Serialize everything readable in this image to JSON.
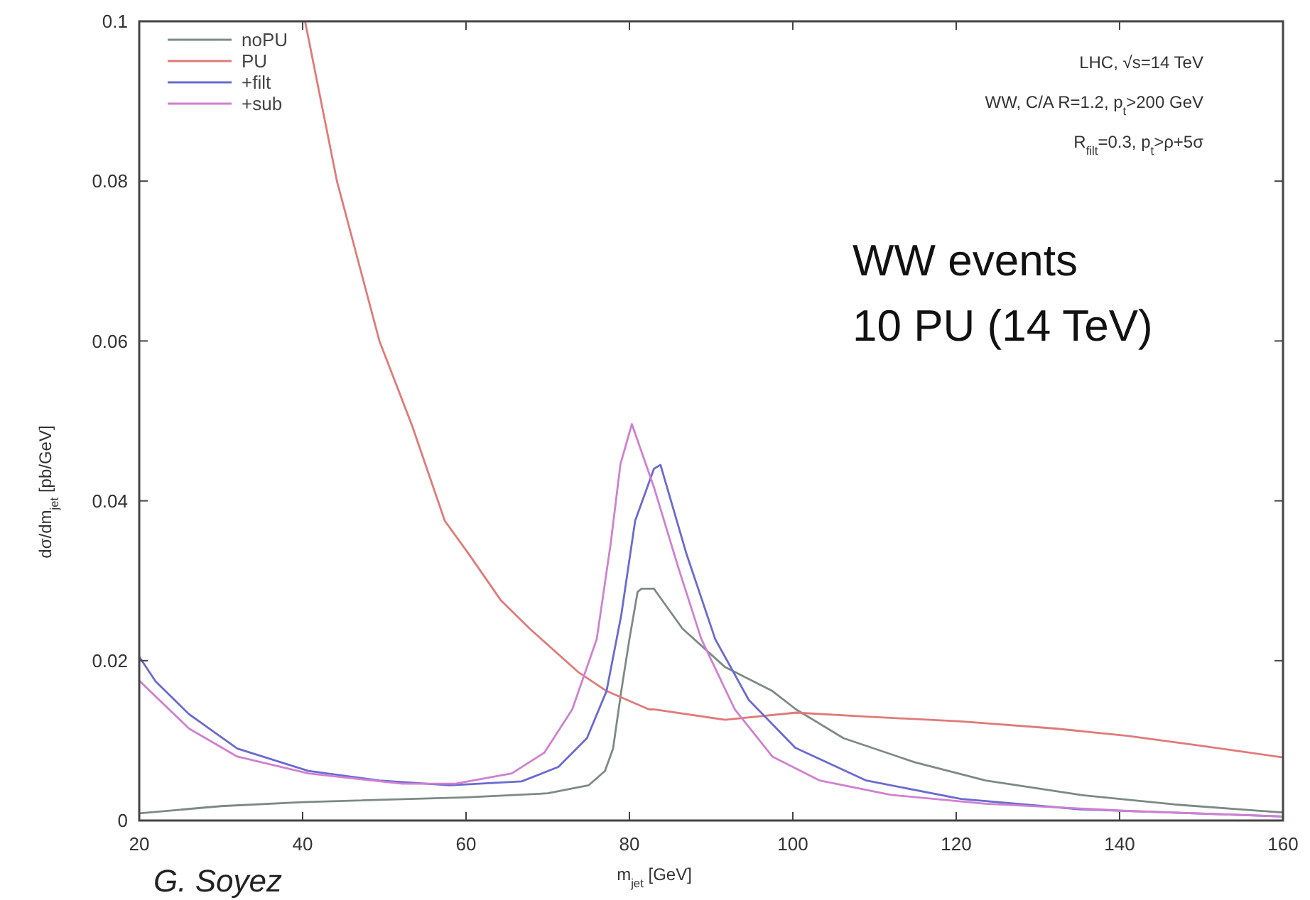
{
  "chart_data": {
    "type": "line",
    "xlabel": "m$_{jet}$ [GeV]",
    "ylabel": "dσ/dm$_{jet}$ [pb/GeV]",
    "xlim": [
      20,
      160
    ],
    "xticks": [
      20,
      40,
      60,
      80,
      100,
      120,
      140,
      160
    ],
    "ylim": [
      0,
      0.1
    ],
    "yticks": [
      0,
      0.02,
      0.04,
      0.06,
      0.08,
      0.1
    ],
    "grid": false,
    "legend": "top left",
    "marker": "none",
    "line_style": "solid",
    "annotations": [
      "LHC, √s=14 TeV",
      "WW, C/A R=1.2, p$_{t}$>200 GeV",
      "R$_{filt}$=0.3, p$_{t}$>ρ+5σ",
      "WW events",
      "10 PU (14 TeV)",
      "G. Soyez"
    ],
    "series": [
      {
        "name": "noPU",
        "color": "#7d8a84",
        "x": [
          20,
          30,
          40,
          60,
          70,
          75,
          77,
          78,
          79,
          80,
          81,
          81.5,
          83,
          86.5,
          91.7,
          97.5,
          100.4,
          106.2,
          114.9,
          123.6,
          135.2,
          146.8,
          160
        ],
        "values": [
          0.0009,
          0.0018,
          0.0023,
          0.0029,
          0.0034,
          0.0044,
          0.0062,
          0.009,
          0.0162,
          0.0227,
          0.0286,
          0.029,
          0.029,
          0.024,
          0.0192,
          0.0162,
          0.0139,
          0.0103,
          0.0073,
          0.005,
          0.0032,
          0.002,
          0.001
        ]
      },
      {
        "name": "PU",
        "color": "#e07a7a",
        "x": [
          40.3,
          44.2,
          49.4,
          53.4,
          57.4,
          60.3,
          64.3,
          67.8,
          73.7,
          77.2,
          82.4,
          83,
          91.7,
          100.4,
          109,
          120.6,
          132.2,
          140.9,
          149.6,
          160
        ],
        "values": [
          0.1,
          0.08,
          0.06,
          0.0494,
          0.0375,
          0.0334,
          0.0275,
          0.024,
          0.0186,
          0.0162,
          0.0139,
          0.0139,
          0.0126,
          0.0135,
          0.013,
          0.0124,
          0.0115,
          0.0106,
          0.0094,
          0.0079
        ]
      },
      {
        "name": "+filt",
        "color": "#6a6ad0",
        "x": [
          20,
          22,
          26.1,
          32,
          40.7,
          49.4,
          58,
          66.8,
          71.3,
          74.8,
          77.2,
          79,
          80.7,
          83,
          83.8,
          87,
          90.5,
          94.6,
          100.3,
          109,
          120.6,
          135.2,
          160
        ],
        "values": [
          0.0205,
          0.0174,
          0.0133,
          0.009,
          0.0062,
          0.005,
          0.0044,
          0.0049,
          0.0067,
          0.0103,
          0.0162,
          0.0257,
          0.0375,
          0.044,
          0.0445,
          0.0333,
          0.0227,
          0.0151,
          0.0091,
          0.005,
          0.0027,
          0.0014,
          0.0005
        ]
      },
      {
        "name": "+sub",
        "color": "#d080d0",
        "x": [
          20,
          26.1,
          32,
          40.7,
          52.2,
          58.7,
          65.6,
          69.6,
          73,
          76,
          77.7,
          78.9,
          80.3,
          83,
          86,
          88.8,
          92.9,
          97.5,
          103.3,
          112,
          123.6,
          141,
          160
        ],
        "values": [
          0.0175,
          0.0115,
          0.008,
          0.0059,
          0.0046,
          0.0046,
          0.0059,
          0.0085,
          0.0139,
          0.0227,
          0.0346,
          0.0446,
          0.0496,
          0.0417,
          0.0316,
          0.0227,
          0.0139,
          0.008,
          0.005,
          0.0032,
          0.0021,
          0.0012,
          0.0005
        ]
      }
    ]
  }
}
